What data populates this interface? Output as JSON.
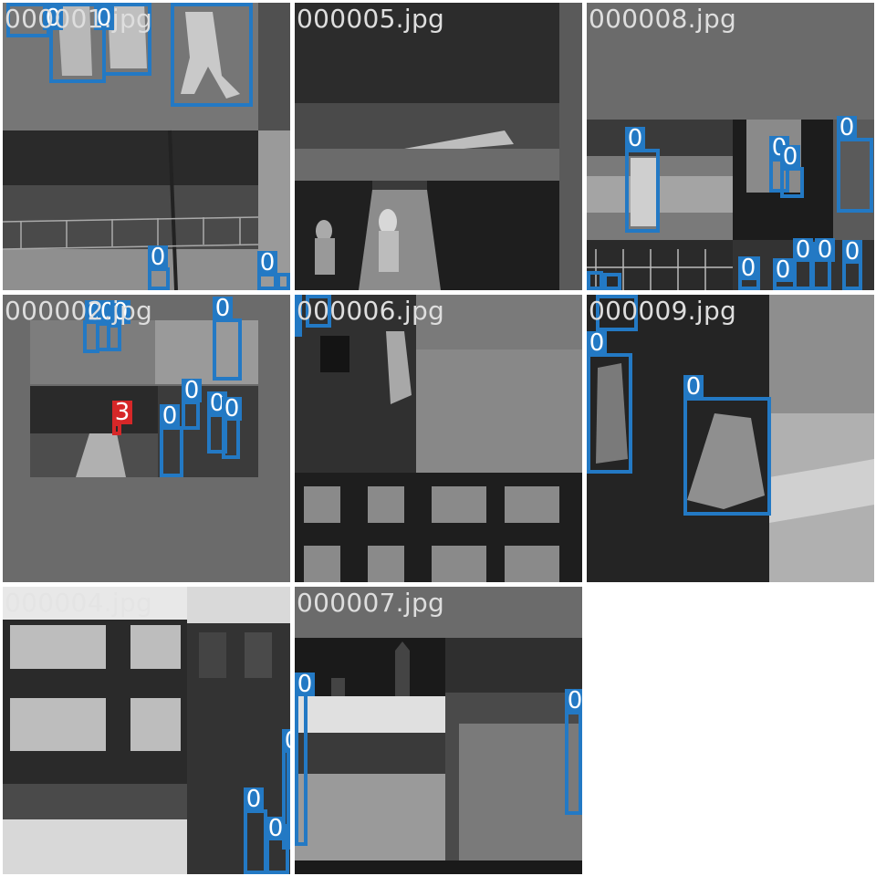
{
  "mosaic": {
    "tiles": [
      {
        "id": "t1",
        "filename": "000001.jpg",
        "labels": [
          "0",
          "0",
          "0",
          "0",
          "0",
          "0",
          "0"
        ]
      },
      {
        "id": "t2",
        "filename": "000005.jpg",
        "labels": []
      },
      {
        "id": "t3",
        "filename": "000008.jpg",
        "labels": [
          "0",
          "0",
          "0",
          "0",
          "0",
          "0",
          "0",
          "0",
          "0",
          "0",
          "0",
          "0",
          "0",
          "0",
          "0"
        ]
      },
      {
        "id": "t4",
        "filename": "000002.jpg",
        "labels": [
          "0",
          "0",
          "0",
          "0",
          "3",
          "0",
          "0",
          "0",
          "0"
        ]
      },
      {
        "id": "t5",
        "filename": "000006.jpg",
        "labels": [
          "0",
          "0"
        ]
      },
      {
        "id": "t6",
        "filename": "000009.jpg",
        "labels": [
          "0",
          "0",
          "0",
          "0"
        ]
      },
      {
        "id": "t7",
        "filename": "000004.jpg",
        "labels": [
          "0",
          "0",
          "0",
          "0"
        ]
      },
      {
        "id": "t8",
        "filename": "000007.jpg",
        "labels": [
          "0",
          "0",
          "0"
        ]
      }
    ]
  },
  "colors": {
    "class_0_box": "#2379c4",
    "class_3_box": "#d62728",
    "filename_text": "#dedede"
  }
}
